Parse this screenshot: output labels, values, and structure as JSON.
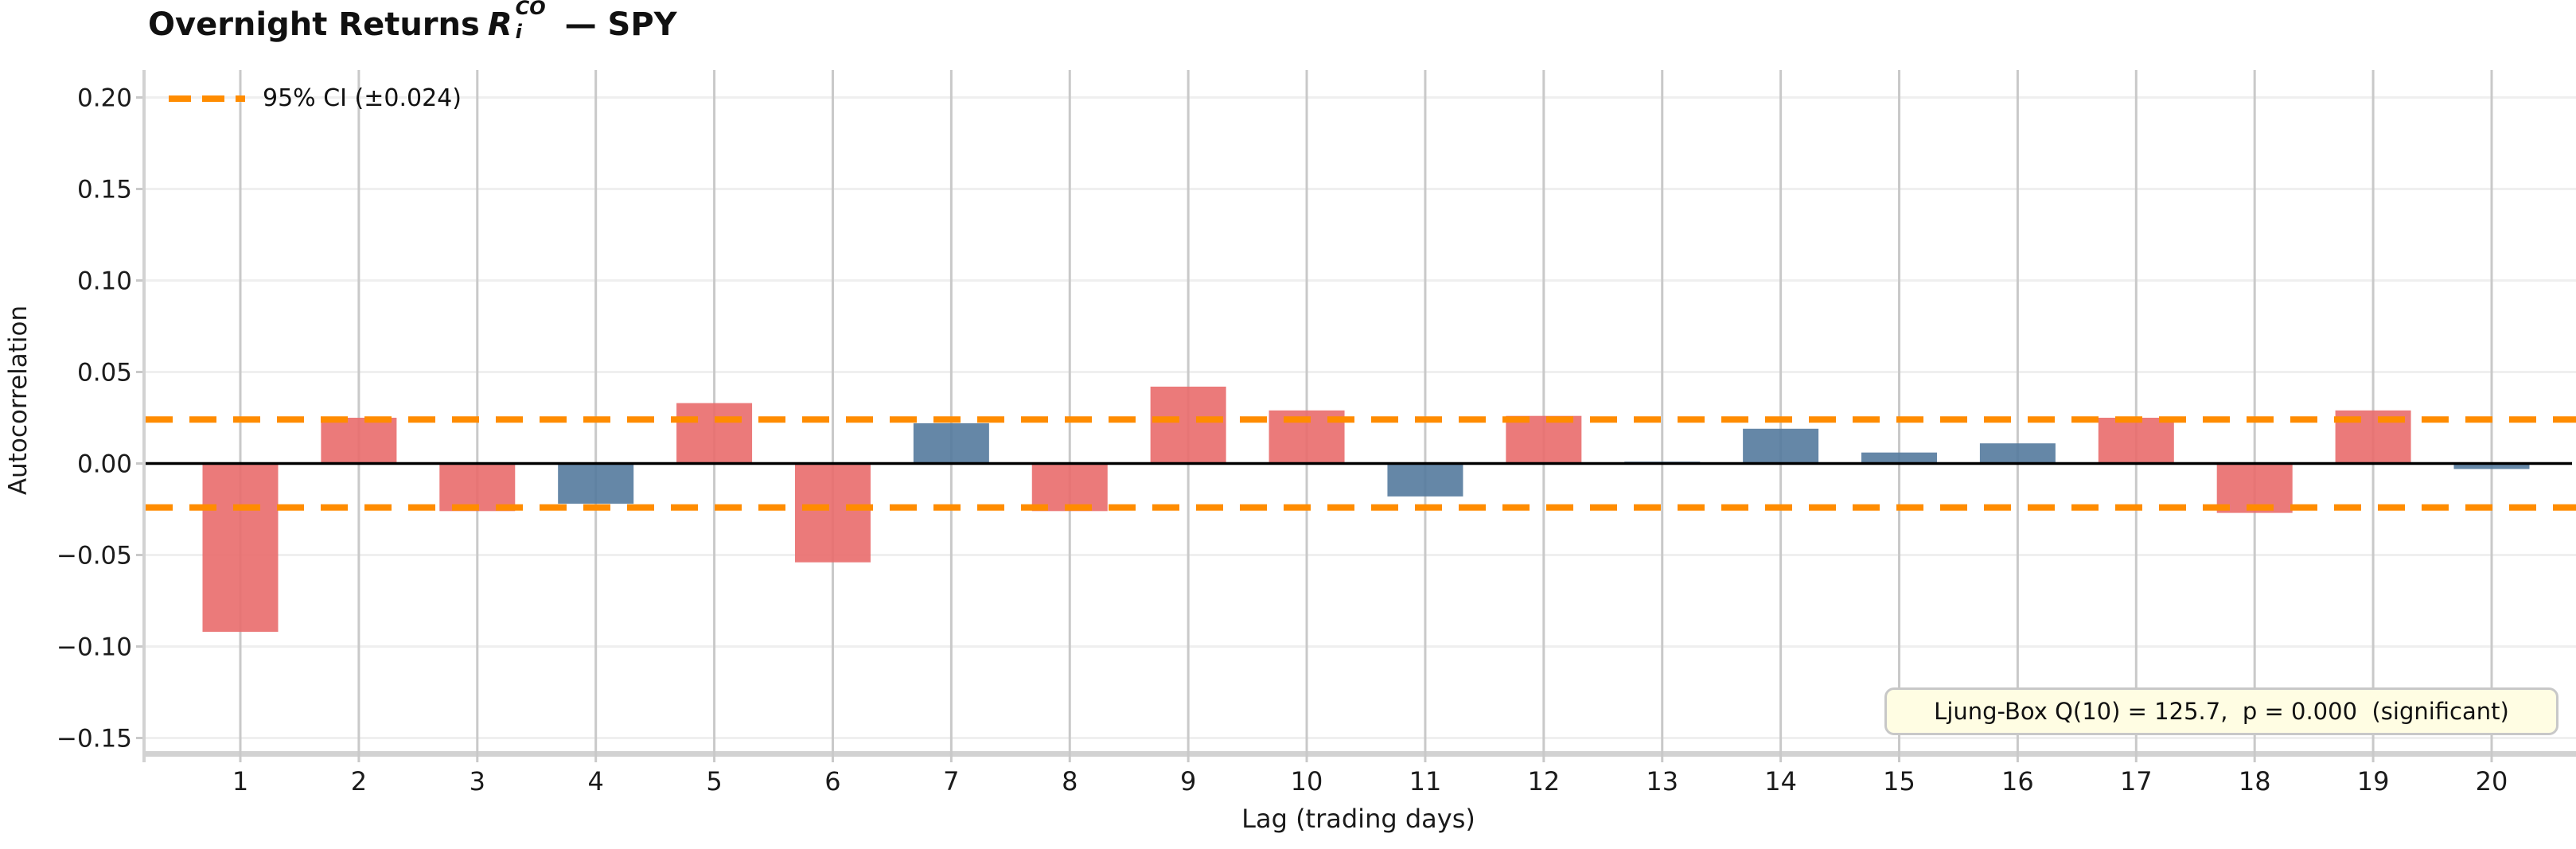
{
  "title": {
    "prefix": "Overnight Returns",
    "r_symbol": "R",
    "r_sup": "CO",
    "r_sub": "i",
    "suffix": " — SPY"
  },
  "legend": {
    "label": "95% CI (±0.024)"
  },
  "annotation": {
    "text": "Ljung-Box Q(10) = 125.7,  p = 0.000  (significant)"
  },
  "axes": {
    "xlabel": "Lag (trading days)",
    "ylabel": "Autocorrelation",
    "y_tick_labels": [
      "0.20",
      "0.15",
      "0.10",
      "0.05",
      "0.00",
      "−0.05",
      "−0.10",
      "−0.15"
    ],
    "x_tick_labels": [
      "1",
      "2",
      "3",
      "4",
      "5",
      "6",
      "7",
      "8",
      "9",
      "10",
      "11",
      "12",
      "13",
      "14",
      "15",
      "16",
      "17",
      "18",
      "19",
      "20"
    ]
  },
  "colors": {
    "bar_significant": "#e96c6c",
    "bar_nonsignificant": "#547a9d",
    "ci_line": "#ff8c00",
    "zero_line": "#000000",
    "grid_vertical": "#c9c9c9",
    "grid_horizontal": "#efefef",
    "spine": "#d2d2d2",
    "tick_text": "#1b1b1b",
    "annotation_bg": "#fffde3",
    "annotation_border": "#c8c8c8"
  },
  "chart_data": {
    "type": "bar",
    "title": "Overnight Returns R_i^CO — SPY",
    "xlabel": "Lag (trading days)",
    "ylabel": "Autocorrelation",
    "categories": [
      1,
      2,
      3,
      4,
      5,
      6,
      7,
      8,
      9,
      10,
      11,
      12,
      13,
      14,
      15,
      16,
      17,
      18,
      19,
      20
    ],
    "values": [
      -0.092,
      0.025,
      -0.026,
      -0.022,
      0.033,
      -0.054,
      0.022,
      -0.026,
      0.042,
      0.029,
      -0.018,
      0.026,
      0.001,
      0.019,
      0.006,
      0.011,
      0.025,
      -0.027,
      0.029,
      -0.003
    ],
    "significant": [
      true,
      true,
      true,
      false,
      true,
      true,
      false,
      true,
      true,
      true,
      false,
      true,
      false,
      false,
      false,
      false,
      true,
      true,
      true,
      false
    ],
    "ci_95": 0.024,
    "ci_lines": [
      0.024,
      -0.024
    ],
    "ljung_box": {
      "q_lag": 10,
      "q_stat": 125.7,
      "p_value": "0.000",
      "verdict": "significant"
    },
    "y_ticks": [
      0.2,
      0.15,
      0.1,
      0.05,
      0.0,
      -0.05,
      -0.1,
      -0.15
    ],
    "ylim": [
      -0.157,
      0.215
    ],
    "grid": true,
    "legend": "95% CI (±0.024)",
    "legend_position": "upper left"
  }
}
